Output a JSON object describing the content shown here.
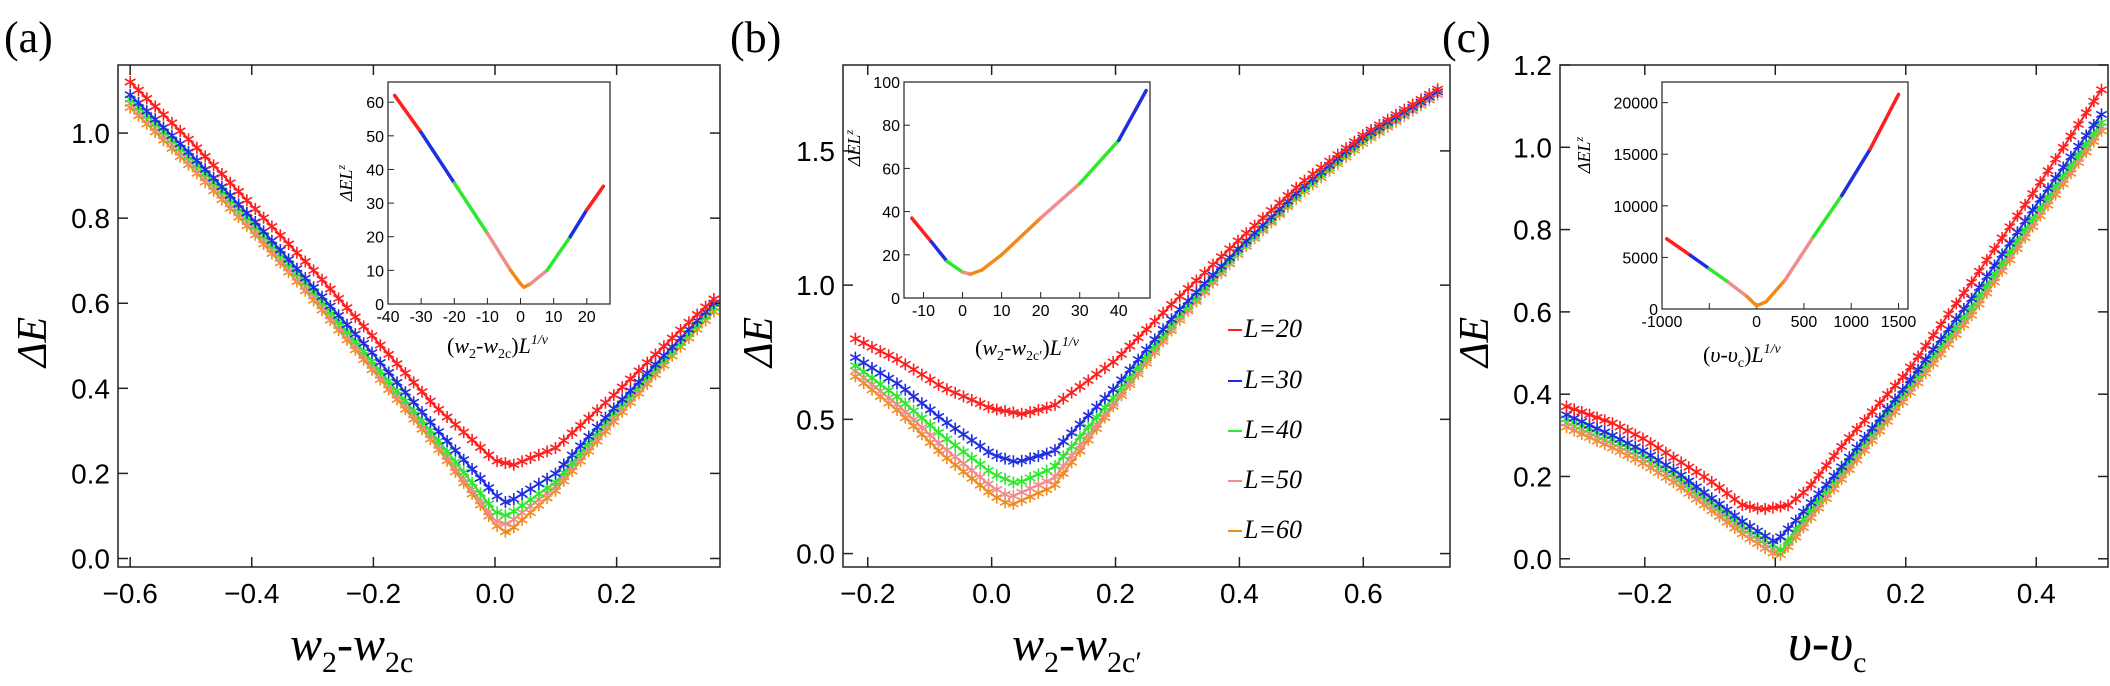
{
  "figure": {
    "panel_labels": [
      "(a)",
      "(b)",
      "(c)"
    ],
    "colors": {
      "L20": "#ff1f1f",
      "L30": "#1f2fe0",
      "L40": "#2ee82e",
      "L50": "#f08c8c",
      "L60": "#f28a1a",
      "axis": "#000000"
    }
  },
  "legend": {
    "entries": [
      {
        "label": "L=20",
        "color": "#ff1f1f"
      },
      {
        "label": "L=30",
        "color": "#1f2fe0"
      },
      {
        "label": "L=40",
        "color": "#2ee82e"
      },
      {
        "label": "L=50",
        "color": "#f08c8c"
      },
      {
        "label": "L=60",
        "color": "#f28a1a"
      }
    ]
  },
  "chart_data": [
    {
      "id": "a",
      "type": "scatter",
      "title": "(a)",
      "xlabel": "w2-w2c",
      "ylabel": "ΔE",
      "xlim": [
        -0.62,
        0.37
      ],
      "ylim": [
        -0.02,
        1.16
      ],
      "xticks": [
        -0.6,
        -0.4,
        -0.2,
        0.0,
        0.2
      ],
      "xtick_labels": [
        "−0.6",
        "−0.4",
        "−0.2",
        "0.0",
        "0.2"
      ],
      "yticks": [
        0.0,
        0.2,
        0.4,
        0.6,
        0.8,
        1.0
      ],
      "ytick_labels": [
        "0.0",
        "0.2",
        "0.4",
        "0.6",
        "0.8",
        "1.0"
      ],
      "series": [
        {
          "name": "L=20",
          "color": "#ff1f1f",
          "x": [
            -0.6,
            -0.5,
            -0.4,
            -0.3,
            -0.2,
            -0.1,
            0.0,
            0.03,
            0.1,
            0.2,
            0.3,
            0.36
          ],
          "y": [
            1.12,
            0.98,
            0.83,
            0.68,
            0.52,
            0.36,
            0.23,
            0.22,
            0.26,
            0.39,
            0.53,
            0.61
          ]
        },
        {
          "name": "L=30",
          "color": "#1f2fe0",
          "x": [
            -0.6,
            -0.5,
            -0.4,
            -0.3,
            -0.2,
            -0.1,
            0.0,
            0.02,
            0.1,
            0.2,
            0.3,
            0.36
          ],
          "y": [
            1.09,
            0.95,
            0.8,
            0.64,
            0.48,
            0.31,
            0.15,
            0.13,
            0.2,
            0.36,
            0.51,
            0.6
          ]
        },
        {
          "name": "L=40",
          "color": "#2ee82e",
          "x": [
            -0.6,
            -0.5,
            -0.4,
            -0.3,
            -0.2,
            -0.1,
            0.0,
            0.02,
            0.1,
            0.2,
            0.3,
            0.36
          ],
          "y": [
            1.08,
            0.94,
            0.79,
            0.63,
            0.46,
            0.29,
            0.11,
            0.1,
            0.18,
            0.35,
            0.5,
            0.59
          ]
        },
        {
          "name": "L=50",
          "color": "#f08c8c",
          "x": [
            -0.6,
            -0.5,
            -0.4,
            -0.3,
            -0.2,
            -0.1,
            0.0,
            0.02,
            0.1,
            0.2,
            0.3,
            0.36
          ],
          "y": [
            1.07,
            0.93,
            0.78,
            0.62,
            0.45,
            0.28,
            0.09,
            0.08,
            0.17,
            0.34,
            0.5,
            0.59
          ]
        },
        {
          "name": "L=60",
          "color": "#f28a1a",
          "x": [
            -0.6,
            -0.5,
            -0.4,
            -0.3,
            -0.2,
            -0.1,
            0.0,
            0.02,
            0.1,
            0.2,
            0.3,
            0.36
          ],
          "y": [
            1.06,
            0.92,
            0.77,
            0.61,
            0.44,
            0.27,
            0.08,
            0.06,
            0.16,
            0.33,
            0.49,
            0.58
          ]
        }
      ],
      "inset": {
        "xlabel": "(w2-w2c)L^{1/ν}",
        "ylabel": "ΔEL^z",
        "xlim": [
          -40,
          27
        ],
        "ylim": [
          0,
          66
        ],
        "xticks": [
          -40,
          -30,
          -20,
          -10,
          0,
          10,
          20
        ],
        "xtick_labels": [
          "-40",
          "-30",
          "-20",
          "-10",
          "0",
          "10",
          "20"
        ],
        "yticks": [
          0,
          10,
          20,
          30,
          40,
          50,
          60
        ],
        "ytick_labels": [
          "0",
          "10",
          "20",
          "30",
          "40",
          "50",
          "60"
        ],
        "curve_x": [
          -38,
          -30,
          -20,
          -10,
          -3,
          0,
          1,
          3,
          8,
          15,
          20,
          25
        ],
        "curve_y": [
          62,
          51,
          36,
          21,
          10,
          6,
          5,
          6,
          10,
          20,
          28,
          35
        ]
      }
    },
    {
      "id": "b",
      "type": "scatter",
      "title": "(b)",
      "xlabel": "w2-w2c′",
      "ylabel": "ΔE",
      "xlim": [
        -0.24,
        0.74
      ],
      "ylim": [
        -0.05,
        1.82
      ],
      "xticks": [
        -0.2,
        0.0,
        0.2,
        0.4,
        0.6
      ],
      "xtick_labels": [
        "−0.2",
        "0.0",
        "0.2",
        "0.4",
        "0.6"
      ],
      "yticks": [
        0.0,
        0.5,
        1.0,
        1.5
      ],
      "ytick_labels": [
        "0.0",
        "0.5",
        "1.0",
        "1.5"
      ],
      "series": [
        {
          "name": "L=20",
          "color": "#ff1f1f",
          "x": [
            -0.22,
            -0.15,
            -0.08,
            0.0,
            0.05,
            0.1,
            0.2,
            0.3,
            0.4,
            0.5,
            0.6,
            0.72
          ],
          "y": [
            0.8,
            0.72,
            0.62,
            0.54,
            0.52,
            0.55,
            0.72,
            0.95,
            1.17,
            1.38,
            1.56,
            1.73
          ]
        },
        {
          "name": "L=30",
          "color": "#1f2fe0",
          "x": [
            -0.22,
            -0.15,
            -0.08,
            0.0,
            0.04,
            0.1,
            0.2,
            0.3,
            0.4,
            0.5,
            0.6,
            0.72
          ],
          "y": [
            0.73,
            0.63,
            0.5,
            0.37,
            0.34,
            0.38,
            0.62,
            0.9,
            1.14,
            1.36,
            1.55,
            1.72
          ]
        },
        {
          "name": "L=40",
          "color": "#2ee82e",
          "x": [
            -0.22,
            -0.15,
            -0.08,
            0.0,
            0.04,
            0.1,
            0.2,
            0.3,
            0.4,
            0.5,
            0.6,
            0.72
          ],
          "y": [
            0.7,
            0.58,
            0.44,
            0.3,
            0.26,
            0.32,
            0.59,
            0.88,
            1.13,
            1.35,
            1.54,
            1.72
          ]
        },
        {
          "name": "L=50",
          "color": "#f08c8c",
          "x": [
            -0.22,
            -0.15,
            -0.08,
            0.0,
            0.03,
            0.1,
            0.2,
            0.3,
            0.4,
            0.5,
            0.6,
            0.72
          ],
          "y": [
            0.68,
            0.55,
            0.4,
            0.25,
            0.21,
            0.28,
            0.57,
            0.87,
            1.12,
            1.35,
            1.54,
            1.71
          ]
        },
        {
          "name": "L=60",
          "color": "#f28a1a",
          "x": [
            -0.22,
            -0.15,
            -0.08,
            0.0,
            0.03,
            0.1,
            0.2,
            0.3,
            0.4,
            0.5,
            0.6,
            0.72
          ],
          "y": [
            0.66,
            0.53,
            0.37,
            0.22,
            0.18,
            0.25,
            0.56,
            0.86,
            1.12,
            1.34,
            1.53,
            1.71
          ]
        }
      ],
      "inset": {
        "xlabel": "(w2-w2c′)L^{1/ν}",
        "ylabel": "ΔEL^z",
        "xlim": [
          -15,
          48
        ],
        "ylim": [
          0,
          100
        ],
        "xticks": [
          -10,
          0,
          10,
          20,
          30,
          40
        ],
        "xtick_labels": [
          "-10",
          "0",
          "10",
          "20",
          "30",
          "40"
        ],
        "yticks": [
          0,
          20,
          40,
          60,
          80,
          100
        ],
        "ytick_labels": [
          "0",
          "20",
          "40",
          "60",
          "80",
          "100"
        ],
        "curve_x": [
          -13,
          -8,
          -4,
          0,
          2,
          5,
          10,
          20,
          30,
          40,
          47
        ],
        "curve_y": [
          37,
          26,
          17,
          12,
          11,
          13,
          20,
          37,
          53,
          73,
          96
        ]
      }
    },
    {
      "id": "c",
      "type": "scatter",
      "title": "(c)",
      "xlabel": "υ-υc",
      "ylabel": "ΔE",
      "xlim": [
        -0.33,
        0.51
      ],
      "ylim": [
        -0.02,
        1.2
      ],
      "xticks": [
        -0.2,
        0.0,
        0.2,
        0.4
      ],
      "xtick_labels": [
        "−0.2",
        "0.0",
        "0.2",
        "0.4"
      ],
      "yticks": [
        0.0,
        0.2,
        0.4,
        0.6,
        0.8,
        1.0,
        1.2
      ],
      "ytick_labels": [
        "0.0",
        "0.2",
        "0.4",
        "0.6",
        "0.8",
        "1.0",
        "1.2"
      ],
      "series": [
        {
          "name": "L=20",
          "color": "#ff1f1f",
          "x": [
            -0.32,
            -0.25,
            -0.2,
            -0.15,
            -0.1,
            -0.05,
            -0.02,
            0.02,
            0.05,
            0.1,
            0.2,
            0.3,
            0.4,
            0.5
          ],
          "y": [
            0.37,
            0.33,
            0.29,
            0.24,
            0.19,
            0.13,
            0.12,
            0.13,
            0.17,
            0.27,
            0.45,
            0.67,
            0.9,
            1.14
          ]
        },
        {
          "name": "L=30",
          "color": "#1f2fe0",
          "x": [
            -0.32,
            -0.25,
            -0.2,
            -0.15,
            -0.1,
            -0.05,
            -0.01,
            0.0,
            0.03,
            0.1,
            0.2,
            0.3,
            0.4,
            0.5
          ],
          "y": [
            0.35,
            0.3,
            0.26,
            0.21,
            0.15,
            0.09,
            0.05,
            0.04,
            0.09,
            0.22,
            0.42,
            0.63,
            0.86,
            1.08
          ]
        },
        {
          "name": "L=40",
          "color": "#2ee82e",
          "x": [
            -0.32,
            -0.25,
            -0.2,
            -0.15,
            -0.1,
            -0.05,
            0.0,
            0.01,
            0.03,
            0.1,
            0.2,
            0.3,
            0.4,
            0.5
          ],
          "y": [
            0.34,
            0.29,
            0.25,
            0.2,
            0.14,
            0.08,
            0.03,
            0.02,
            0.07,
            0.21,
            0.41,
            0.61,
            0.84,
            1.06
          ]
        },
        {
          "name": "L=50",
          "color": "#f08c8c",
          "x": [
            -0.32,
            -0.25,
            -0.2,
            -0.15,
            -0.1,
            -0.05,
            0.0,
            0.01,
            0.03,
            0.1,
            0.2,
            0.3,
            0.4,
            0.5
          ],
          "y": [
            0.33,
            0.28,
            0.24,
            0.19,
            0.13,
            0.07,
            0.02,
            0.02,
            0.06,
            0.2,
            0.4,
            0.6,
            0.83,
            1.05
          ]
        },
        {
          "name": "L=60",
          "color": "#f28a1a",
          "x": [
            -0.32,
            -0.25,
            -0.2,
            -0.15,
            -0.1,
            -0.05,
            0.0,
            0.01,
            0.03,
            0.1,
            0.2,
            0.3,
            0.4,
            0.5
          ],
          "y": [
            0.32,
            0.27,
            0.23,
            0.18,
            0.12,
            0.06,
            0.01,
            0.01,
            0.05,
            0.19,
            0.39,
            0.59,
            0.82,
            1.04
          ]
        }
      ],
      "inset": {
        "xlabel": "(υ-υc)L^{1/ν}",
        "ylabel": "ΔEL^z",
        "xlim": [
          -1000,
          1600
        ],
        "ylim": [
          0,
          22000
        ],
        "xticks": [
          -1000,
          -500,
          0,
          500,
          1000,
          1500
        ],
        "xtick_labels": [
          "-1000",
          "",
          "0",
          "500",
          "1000",
          "1500"
        ],
        "yticks": [
          0,
          5000,
          10000,
          15000,
          20000
        ],
        "ytick_labels": [
          "0",
          "5000",
          "10000",
          "15000",
          "20000"
        ],
        "curve_x": [
          -950,
          -700,
          -500,
          -300,
          -100,
          0,
          100,
          300,
          600,
          900,
          1200,
          1500
        ],
        "curve_y": [
          6800,
          5200,
          3900,
          2600,
          1200,
          300,
          700,
          2800,
          7000,
          11000,
          15500,
          20800
        ]
      }
    }
  ]
}
